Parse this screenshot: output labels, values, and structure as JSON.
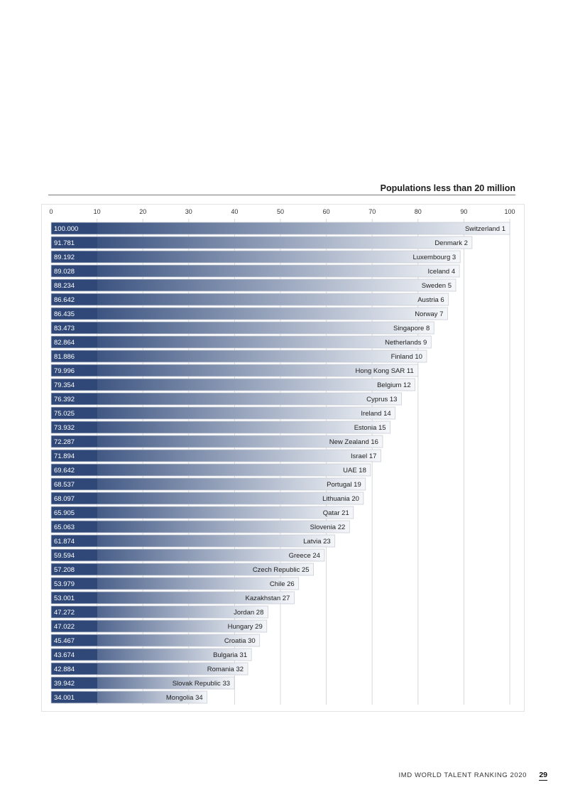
{
  "chart_data": {
    "type": "bar",
    "orientation": "horizontal",
    "title": "Populations less than 20 million",
    "xlim": [
      0,
      100
    ],
    "x_ticks": [
      0,
      10,
      20,
      30,
      40,
      50,
      60,
      70,
      80,
      90,
      100
    ],
    "grid": true,
    "colors": {
      "bar_dark": "#2f4878",
      "bar_light": "#f4f6f9",
      "label_box": "#2f4878"
    },
    "bars": [
      {
        "label": "Switzerland 1",
        "value": 100.0,
        "value_label": "100.000"
      },
      {
        "label": "Denmark 2",
        "value": 91.781,
        "value_label": "91.781"
      },
      {
        "label": "Luxembourg 3",
        "value": 89.192,
        "value_label": "89.192"
      },
      {
        "label": "Iceland 4",
        "value": 89.028,
        "value_label": "89.028"
      },
      {
        "label": "Sweden 5",
        "value": 88.234,
        "value_label": "88.234"
      },
      {
        "label": "Austria 6",
        "value": 86.642,
        "value_label": "86.642"
      },
      {
        "label": "Norway 7",
        "value": 86.435,
        "value_label": "86.435"
      },
      {
        "label": "Singapore 8",
        "value": 83.473,
        "value_label": "83.473"
      },
      {
        "label": "Netherlands 9",
        "value": 82.864,
        "value_label": "82.864"
      },
      {
        "label": "Finland 10",
        "value": 81.886,
        "value_label": "81.886"
      },
      {
        "label": "Hong Kong SAR 11",
        "value": 79.996,
        "value_label": "79.996"
      },
      {
        "label": "Belgium 12",
        "value": 79.354,
        "value_label": "79.354"
      },
      {
        "label": "Cyprus 13",
        "value": 76.392,
        "value_label": "76.392"
      },
      {
        "label": "Ireland 14",
        "value": 75.025,
        "value_label": "75.025"
      },
      {
        "label": "Estonia 15",
        "value": 73.932,
        "value_label": "73.932"
      },
      {
        "label": "New Zealand 16",
        "value": 72.287,
        "value_label": "72.287"
      },
      {
        "label": "Israel 17",
        "value": 71.894,
        "value_label": "71.894"
      },
      {
        "label": "UAE 18",
        "value": 69.642,
        "value_label": "69.642"
      },
      {
        "label": "Portugal 19",
        "value": 68.537,
        "value_label": "68.537"
      },
      {
        "label": "Lithuania 20",
        "value": 68.097,
        "value_label": "68.097"
      },
      {
        "label": "Qatar 21",
        "value": 65.905,
        "value_label": "65.905"
      },
      {
        "label": "Slovenia 22",
        "value": 65.063,
        "value_label": "65.063"
      },
      {
        "label": "Latvia 23",
        "value": 61.874,
        "value_label": "61.874"
      },
      {
        "label": "Greece 24",
        "value": 59.594,
        "value_label": "59.594"
      },
      {
        "label": "Czech Republic 25",
        "value": 57.208,
        "value_label": "57.208"
      },
      {
        "label": "Chile 26",
        "value": 53.979,
        "value_label": "53.979"
      },
      {
        "label": "Kazakhstan 27",
        "value": 53.001,
        "value_label": "53.001"
      },
      {
        "label": "Jordan 28",
        "value": 47.272,
        "value_label": "47.272"
      },
      {
        "label": "Hungary 29",
        "value": 47.022,
        "value_label": "47.022"
      },
      {
        "label": "Croatia 30",
        "value": 45.467,
        "value_label": "45.467"
      },
      {
        "label": "Bulgaria 31",
        "value": 43.674,
        "value_label": "43.674"
      },
      {
        "label": "Romania 32",
        "value": 42.884,
        "value_label": "42.884"
      },
      {
        "label": "Slovak Republic 33",
        "value": 39.942,
        "value_label": "39.942"
      },
      {
        "label": "Mongolia 34",
        "value": 34.001,
        "value_label": "34.001"
      }
    ]
  },
  "footer": {
    "publication": "IMD WORLD TALENT RANKING 2020",
    "page_number": "29"
  }
}
